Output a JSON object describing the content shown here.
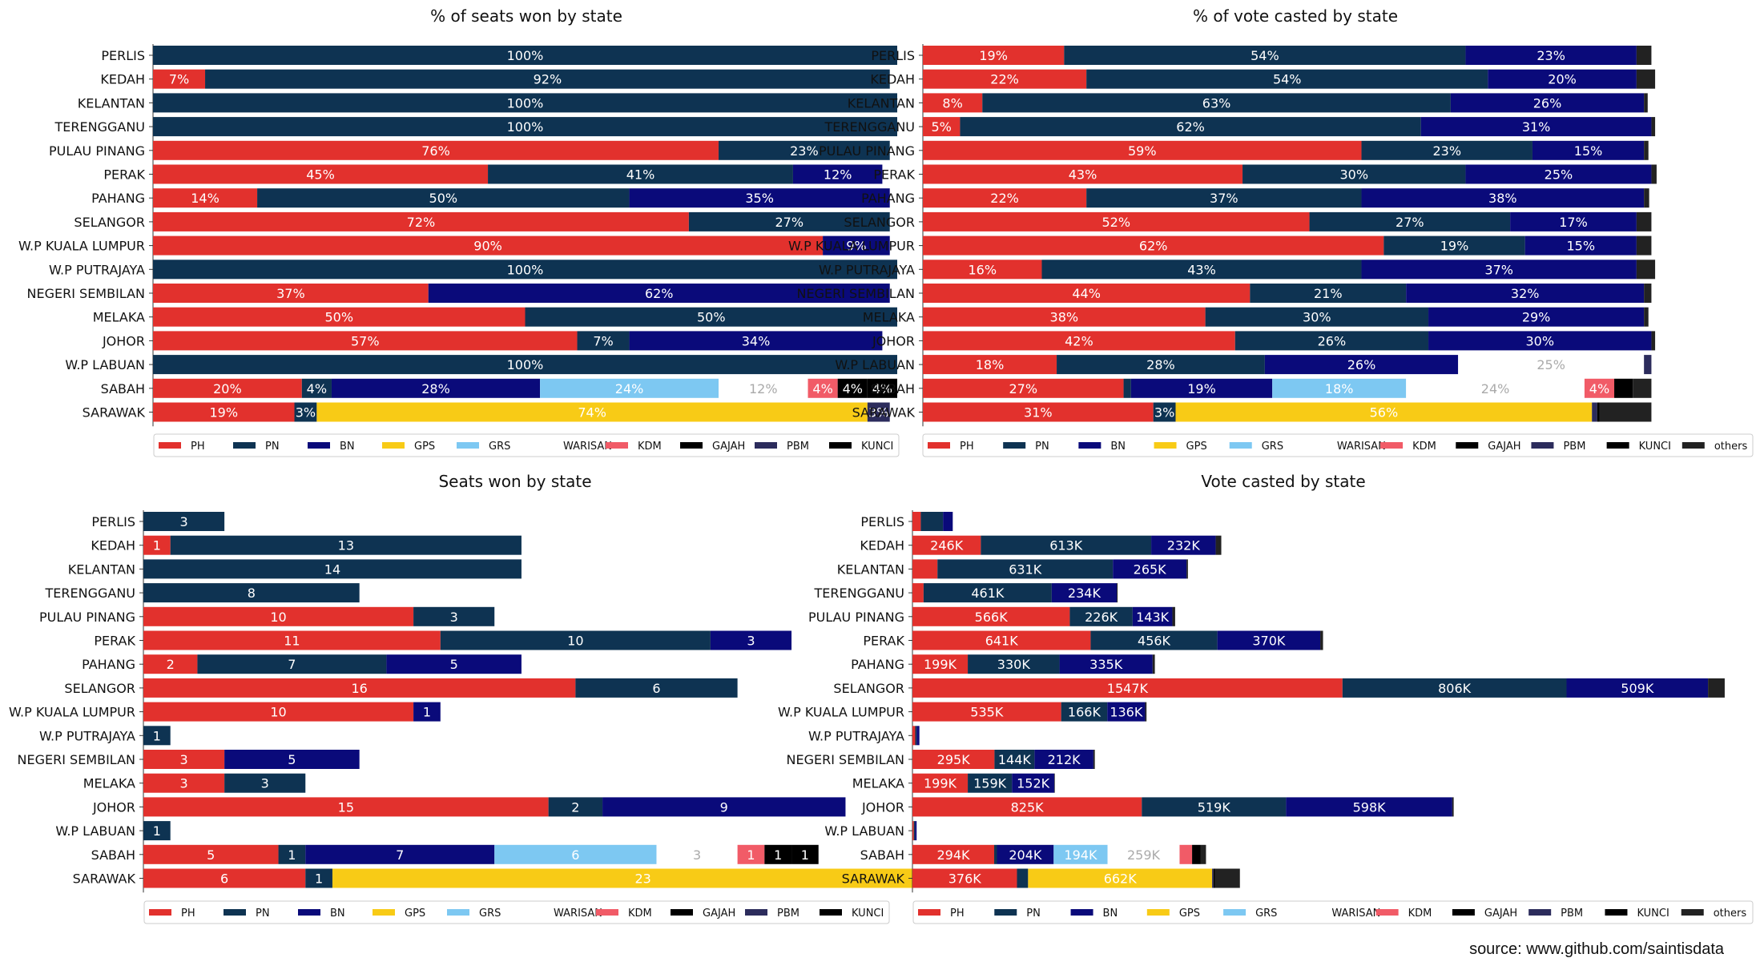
{
  "source": "source: www.github.com/saintisdata",
  "parties": [
    "PH",
    "PN",
    "BN",
    "GPS",
    "GRS",
    "WARISAN",
    "KDM",
    "GAJAH",
    "PBM",
    "KUNCI",
    "others"
  ],
  "colors": {
    "PH": "#e2312d",
    "PN": "#0e3352",
    "BN": "#0a0a7a",
    "GPS": "#f8cb16",
    "GRS": "#7dc8f2",
    "WARISAN": "#ffffff",
    "KDM": "#f15b67",
    "GAJAH": "#000000",
    "PBM": "#2c2c5c",
    "KUNCI": "#000000",
    "others": "#222222"
  },
  "chart_data": [
    {
      "type": "bar",
      "orientation": "horizontal",
      "stacked": true,
      "title": "% of seats won by state",
      "categories": [
        "PERLIS",
        "KEDAH",
        "KELANTAN",
        "TERENGGANU",
        "PULAU PINANG",
        "PERAK",
        "PAHANG",
        "SELANGOR",
        "W.P KUALA LUMPUR",
        "W.P PUTRAJAYA",
        "NEGERI SEMBILAN",
        "MELAKA",
        "JOHOR",
        "W.P LABUAN",
        "SABAH",
        "SARAWAK"
      ],
      "series": [
        {
          "name": "PH",
          "values": [
            0,
            7,
            0,
            0,
            76,
            45,
            14,
            72,
            90,
            0,
            37,
            50,
            57,
            0,
            20,
            19
          ]
        },
        {
          "name": "PN",
          "values": [
            100,
            92,
            100,
            100,
            23,
            41,
            50,
            27,
            0,
            100,
            0,
            50,
            7,
            100,
            4,
            3
          ]
        },
        {
          "name": "BN",
          "values": [
            0,
            0,
            0,
            0,
            0,
            12,
            35,
            0,
            9,
            0,
            62,
            0,
            34,
            0,
            28,
            0
          ]
        },
        {
          "name": "GPS",
          "values": [
            0,
            0,
            0,
            0,
            0,
            0,
            0,
            0,
            0,
            0,
            0,
            0,
            0,
            0,
            0,
            74
          ]
        },
        {
          "name": "GRS",
          "values": [
            0,
            0,
            0,
            0,
            0,
            0,
            0,
            0,
            0,
            0,
            0,
            0,
            0,
            0,
            24,
            0
          ]
        },
        {
          "name": "WARISAN",
          "values": [
            0,
            0,
            0,
            0,
            0,
            0,
            0,
            0,
            0,
            0,
            0,
            0,
            0,
            0,
            12,
            0
          ]
        },
        {
          "name": "KDM",
          "values": [
            0,
            0,
            0,
            0,
            0,
            0,
            0,
            0,
            0,
            0,
            0,
            0,
            0,
            0,
            4,
            0
          ]
        },
        {
          "name": "GAJAH",
          "values": [
            0,
            0,
            0,
            0,
            0,
            0,
            0,
            0,
            0,
            0,
            0,
            0,
            0,
            0,
            4,
            0
          ]
        },
        {
          "name": "PBM",
          "values": [
            0,
            0,
            0,
            0,
            0,
            0,
            0,
            0,
            0,
            0,
            0,
            0,
            0,
            0,
            0,
            3
          ]
        },
        {
          "name": "KUNCI",
          "values": [
            0,
            0,
            0,
            0,
            0,
            0,
            0,
            0,
            0,
            0,
            0,
            0,
            0,
            0,
            4,
            0
          ]
        }
      ],
      "value_suffix": "%",
      "legend": [
        "PH",
        "PN",
        "BN",
        "GPS",
        "GRS",
        "WARISAN",
        "KDM",
        "GAJAH",
        "PBM",
        "KUNCI"
      ],
      "legend_position": "bottom",
      "grid": false
    },
    {
      "type": "bar",
      "orientation": "horizontal",
      "stacked": true,
      "title": "% of vote casted by state",
      "categories": [
        "PERLIS",
        "KEDAH",
        "KELANTAN",
        "TERENGGANU",
        "PULAU PINANG",
        "PERAK",
        "PAHANG",
        "SELANGOR",
        "W.P KUALA LUMPUR",
        "W.P PUTRAJAYA",
        "NEGERI SEMBILAN",
        "MELAKA",
        "JOHOR",
        "W.P LABUAN",
        "SABAH",
        "SARAWAK"
      ],
      "series": [
        {
          "name": "PH",
          "values": [
            19,
            22,
            8,
            5,
            59,
            43,
            22,
            52,
            62,
            16,
            44,
            38,
            42,
            18,
            27,
            31
          ]
        },
        {
          "name": "PN",
          "values": [
            54,
            54,
            63,
            62,
            23,
            30,
            37,
            27,
            19,
            43,
            21,
            30,
            26,
            28,
            1,
            3
          ]
        },
        {
          "name": "BN",
          "values": [
            23,
            20,
            26,
            31,
            15,
            25,
            38,
            17,
            15,
            37,
            32,
            29,
            30,
            26,
            19,
            0
          ]
        },
        {
          "name": "GPS",
          "values": [
            0,
            0,
            0,
            0,
            0,
            0,
            0,
            0,
            0,
            0,
            0,
            0,
            0,
            0,
            0,
            56
          ]
        },
        {
          "name": "GRS",
          "values": [
            0,
            0,
            0,
            0,
            0,
            0,
            0,
            0,
            0,
            0,
            0,
            0,
            0,
            0,
            18,
            0
          ]
        },
        {
          "name": "WARISAN",
          "values": [
            0,
            0,
            0,
            0,
            0,
            0,
            0,
            0,
            0,
            0,
            0,
            0,
            0,
            25,
            24,
            0
          ]
        },
        {
          "name": "KDM",
          "values": [
            0,
            0,
            0,
            0,
            0,
            0,
            0,
            0,
            0,
            0,
            0,
            0,
            0,
            0,
            4,
            0
          ]
        },
        {
          "name": "GAJAH",
          "values": [
            0,
            0,
            0,
            0,
            0,
            0,
            0,
            0,
            0,
            0,
            0,
            0,
            0,
            0,
            2.5,
            0
          ]
        },
        {
          "name": "PBM",
          "values": [
            0,
            0,
            0,
            0,
            0,
            0,
            0,
            0,
            0,
            0,
            0,
            0,
            0,
            1,
            0,
            0.7
          ]
        },
        {
          "name": "KUNCI",
          "values": [
            0,
            0,
            0,
            0,
            0,
            0,
            0,
            0,
            0,
            0,
            0,
            0,
            0,
            0,
            0,
            0.3
          ]
        },
        {
          "name": "others",
          "values": [
            2,
            2.5,
            0.5,
            0.5,
            0.6,
            0.7,
            0.7,
            2,
            2,
            2.5,
            1,
            0.6,
            0.5,
            0,
            2.5,
            7
          ]
        }
      ],
      "value_suffix": "%",
      "legend": [
        "PH",
        "PN",
        "BN",
        "GPS",
        "GRS",
        "WARISAN",
        "KDM",
        "GAJAH",
        "PBM",
        "KUNCI",
        "others"
      ],
      "legend_position": "bottom",
      "grid": false
    },
    {
      "type": "bar",
      "orientation": "horizontal",
      "stacked": true,
      "title": "Seats won by state",
      "categories": [
        "PERLIS",
        "KEDAH",
        "KELANTAN",
        "TERENGGANU",
        "PULAU PINANG",
        "PERAK",
        "PAHANG",
        "SELANGOR",
        "W.P KUALA LUMPUR",
        "W.P PUTRAJAYA",
        "NEGERI SEMBILAN",
        "MELAKA",
        "JOHOR",
        "W.P LABUAN",
        "SABAH",
        "SARAWAK"
      ],
      "series": [
        {
          "name": "PH",
          "values": [
            0,
            1,
            0,
            0,
            10,
            11,
            2,
            16,
            10,
            0,
            3,
            3,
            15,
            0,
            5,
            6
          ]
        },
        {
          "name": "PN",
          "values": [
            3,
            13,
            14,
            8,
            3,
            10,
            7,
            6,
            0,
            1,
            0,
            3,
            2,
            1,
            1,
            1
          ]
        },
        {
          "name": "BN",
          "values": [
            0,
            0,
            0,
            0,
            0,
            3,
            5,
            0,
            1,
            0,
            5,
            0,
            9,
            0,
            7,
            0
          ]
        },
        {
          "name": "GPS",
          "values": [
            0,
            0,
            0,
            0,
            0,
            0,
            0,
            0,
            0,
            0,
            0,
            0,
            0,
            0,
            0,
            23
          ]
        },
        {
          "name": "GRS",
          "values": [
            0,
            0,
            0,
            0,
            0,
            0,
            0,
            0,
            0,
            0,
            0,
            0,
            0,
            0,
            6,
            0
          ]
        },
        {
          "name": "WARISAN",
          "values": [
            0,
            0,
            0,
            0,
            0,
            0,
            0,
            0,
            0,
            0,
            0,
            0,
            0,
            0,
            3,
            0
          ]
        },
        {
          "name": "KDM",
          "values": [
            0,
            0,
            0,
            0,
            0,
            0,
            0,
            0,
            0,
            0,
            0,
            0,
            0,
            0,
            1,
            0
          ]
        },
        {
          "name": "GAJAH",
          "values": [
            0,
            0,
            0,
            0,
            0,
            0,
            0,
            0,
            0,
            0,
            0,
            0,
            0,
            0,
            1,
            0
          ]
        },
        {
          "name": "PBM",
          "values": [
            0,
            0,
            0,
            0,
            0,
            0,
            0,
            0,
            0,
            0,
            0,
            0,
            0,
            0,
            0,
            1
          ]
        },
        {
          "name": "KUNCI",
          "values": [
            0,
            0,
            0,
            0,
            0,
            0,
            0,
            0,
            0,
            0,
            0,
            0,
            0,
            0,
            1,
            0
          ]
        }
      ],
      "xlim": [
        0,
        31
      ],
      "legend": [
        "PH",
        "PN",
        "BN",
        "GPS",
        "GRS",
        "WARISAN",
        "KDM",
        "GAJAH",
        "PBM",
        "KUNCI"
      ],
      "legend_position": "bottom",
      "grid": false
    },
    {
      "type": "bar",
      "orientation": "horizontal",
      "stacked": true,
      "title": "Vote casted by state",
      "categories": [
        "PERLIS",
        "KEDAH",
        "KELANTAN",
        "TERENGGANU",
        "PULAU PINANG",
        "PERAK",
        "PAHANG",
        "SELANGOR",
        "W.P KUALA LUMPUR",
        "W.P PUTRAJAYA",
        "NEGERI SEMBILAN",
        "MELAKA",
        "JOHOR",
        "W.P LABUAN",
        "SABAH",
        "SARAWAK"
      ],
      "series": [
        {
          "name": "PH",
          "values": [
            30,
            246,
            90,
            40,
            566,
            641,
            199,
            1547,
            535,
            10,
            295,
            199,
            825,
            5,
            294,
            376
          ]
        },
        {
          "name": "PN",
          "values": [
            80,
            613,
            631,
            461,
            226,
            456,
            330,
            806,
            166,
            5,
            144,
            159,
            519,
            4,
            10,
            40
          ]
        },
        {
          "name": "BN",
          "values": [
            35,
            232,
            265,
            234,
            143,
            370,
            335,
            509,
            136,
            10,
            212,
            152,
            598,
            6,
            204,
            0
          ]
        },
        {
          "name": "GPS",
          "values": [
            0,
            0,
            0,
            0,
            0,
            0,
            0,
            0,
            0,
            0,
            0,
            0,
            0,
            0,
            0,
            662
          ]
        },
        {
          "name": "GRS",
          "values": [
            0,
            0,
            0,
            0,
            0,
            0,
            0,
            0,
            0,
            0,
            0,
            0,
            0,
            0,
            194,
            0
          ]
        },
        {
          "name": "WARISAN",
          "values": [
            0,
            0,
            0,
            0,
            0,
            0,
            0,
            0,
            0,
            0,
            0,
            0,
            0,
            0,
            259,
            0
          ]
        },
        {
          "name": "KDM",
          "values": [
            0,
            0,
            0,
            0,
            0,
            0,
            0,
            0,
            0,
            0,
            0,
            0,
            0,
            0,
            45,
            0
          ]
        },
        {
          "name": "GAJAH",
          "values": [
            0,
            0,
            0,
            0,
            0,
            0,
            0,
            0,
            0,
            0,
            0,
            0,
            0,
            0,
            30,
            0
          ]
        },
        {
          "name": "PBM",
          "values": [
            0,
            0,
            0,
            0,
            0,
            0,
            0,
            0,
            0,
            0,
            0,
            0,
            0,
            0,
            0,
            5
          ]
        },
        {
          "name": "KUNCI",
          "values": [
            0,
            0,
            0,
            0,
            0,
            0,
            0,
            0,
            0,
            0,
            0,
            0,
            0,
            0,
            0,
            5
          ]
        },
        {
          "name": "others",
          "values": [
            0,
            20,
            5,
            3,
            10,
            10,
            8,
            60,
            5,
            0,
            5,
            2,
            5,
            0,
            20,
            90
          ]
        }
      ],
      "value_labels_suffix": "K",
      "label_hidden_values": [
        [
          0,
          0
        ],
        [
          0,
          1
        ],
        [
          0,
          2
        ],
        [
          2,
          0
        ],
        [
          3,
          0
        ],
        [
          9,
          0
        ],
        [
          9,
          1
        ],
        [
          9,
          2
        ],
        [
          13,
          0
        ],
        [
          13,
          1
        ],
        [
          13,
          2
        ],
        [
          14,
          1
        ],
        [
          15,
          1
        ]
      ],
      "xlim": [
        0,
        3000
      ],
      "legend": [
        "PH",
        "PN",
        "BN",
        "GPS",
        "GRS",
        "WARISAN",
        "KDM",
        "GAJAH",
        "PBM",
        "KUNCI",
        "others"
      ],
      "legend_position": "bottom",
      "grid": false
    }
  ]
}
